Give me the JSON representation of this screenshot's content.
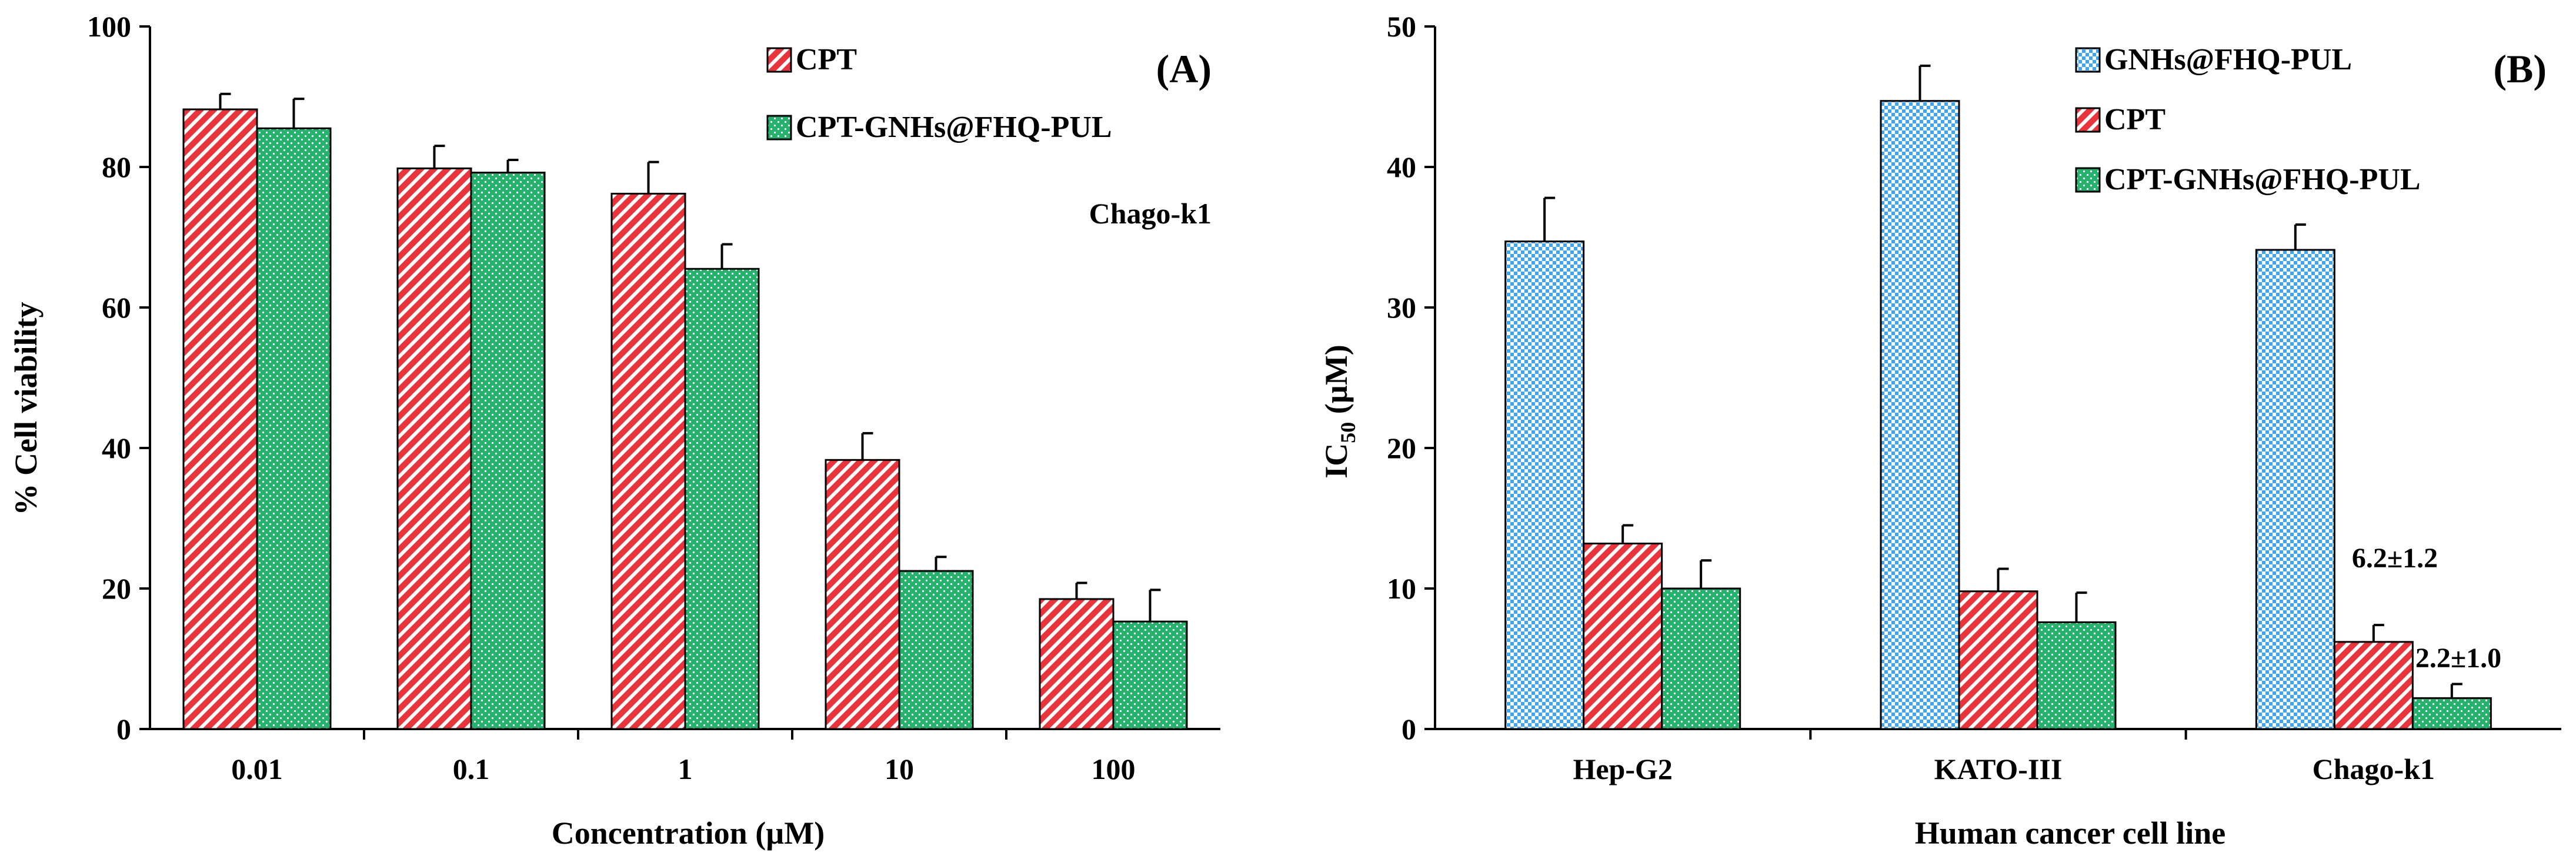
{
  "colors": {
    "cpt": "#e8343a",
    "cpt_gnhs": "#24b36b",
    "gnhs": "#3da6f2",
    "error_bar": "#000000",
    "axis": "#000000"
  },
  "chart_data": [
    {
      "type": "bar",
      "panel_label": "(A)",
      "annotation": "Chago-k1",
      "xlabel": "Concentration (µM)",
      "ylabel": "% Cell viability",
      "ylim": [
        0,
        100
      ],
      "yticks": [
        0,
        20,
        40,
        60,
        80,
        100
      ],
      "ytick_labels": [
        "0",
        "20",
        "40",
        "60",
        "80",
        "100"
      ],
      "categories": [
        "0.01",
        "0.1",
        "1",
        "10",
        "100"
      ],
      "legend_position": "top-center",
      "series": [
        {
          "name": "CPT",
          "color": "#e8343a",
          "pattern": "diagonal",
          "values": [
            88.2,
            79.8,
            76.2,
            38.3,
            18.5
          ],
          "errors": [
            2.2,
            3.2,
            4.5,
            3.8,
            2.3
          ]
        },
        {
          "name": "CPT-GNHs@FHQ-PUL",
          "color": "#24b36b",
          "pattern": "dots",
          "values": [
            85.5,
            79.2,
            65.5,
            22.5,
            15.3
          ],
          "errors": [
            4.2,
            1.8,
            3.5,
            2.0,
            4.5
          ]
        }
      ]
    },
    {
      "type": "bar",
      "panel_label": "(B)",
      "xlabel": "Human cancer cell line",
      "ylabel": "IC",
      "ylabel_sub": "50",
      "ylabel_unit": " (µM)",
      "ylim": [
        0,
        50
      ],
      "yticks": [
        0,
        10,
        20,
        30,
        40,
        50
      ],
      "ytick_labels": [
        "0",
        "10",
        "20",
        "30",
        "40",
        "50"
      ],
      "categories": [
        "Hep-G2",
        "KATO-III",
        "Chago-k1"
      ],
      "legend_position": "top-center",
      "annotations": [
        "6.2±1.2",
        "2.2±1.0"
      ],
      "series": [
        {
          "name": "GNHs@FHQ-PUL",
          "color": "#3da6f2",
          "pattern": "checker",
          "values": [
            34.7,
            44.7,
            34.1
          ],
          "errors": [
            3.1,
            2.5,
            1.8
          ]
        },
        {
          "name": "CPT",
          "color": "#e8343a",
          "pattern": "diagonal",
          "values": [
            13.2,
            9.8,
            6.2
          ],
          "errors": [
            1.3,
            1.6,
            1.2
          ]
        },
        {
          "name": "CPT-GNHs@FHQ-PUL",
          "color": "#24b36b",
          "pattern": "dots",
          "values": [
            10.0,
            7.6,
            2.2
          ],
          "errors": [
            2.0,
            2.1,
            1.0
          ]
        }
      ]
    }
  ]
}
